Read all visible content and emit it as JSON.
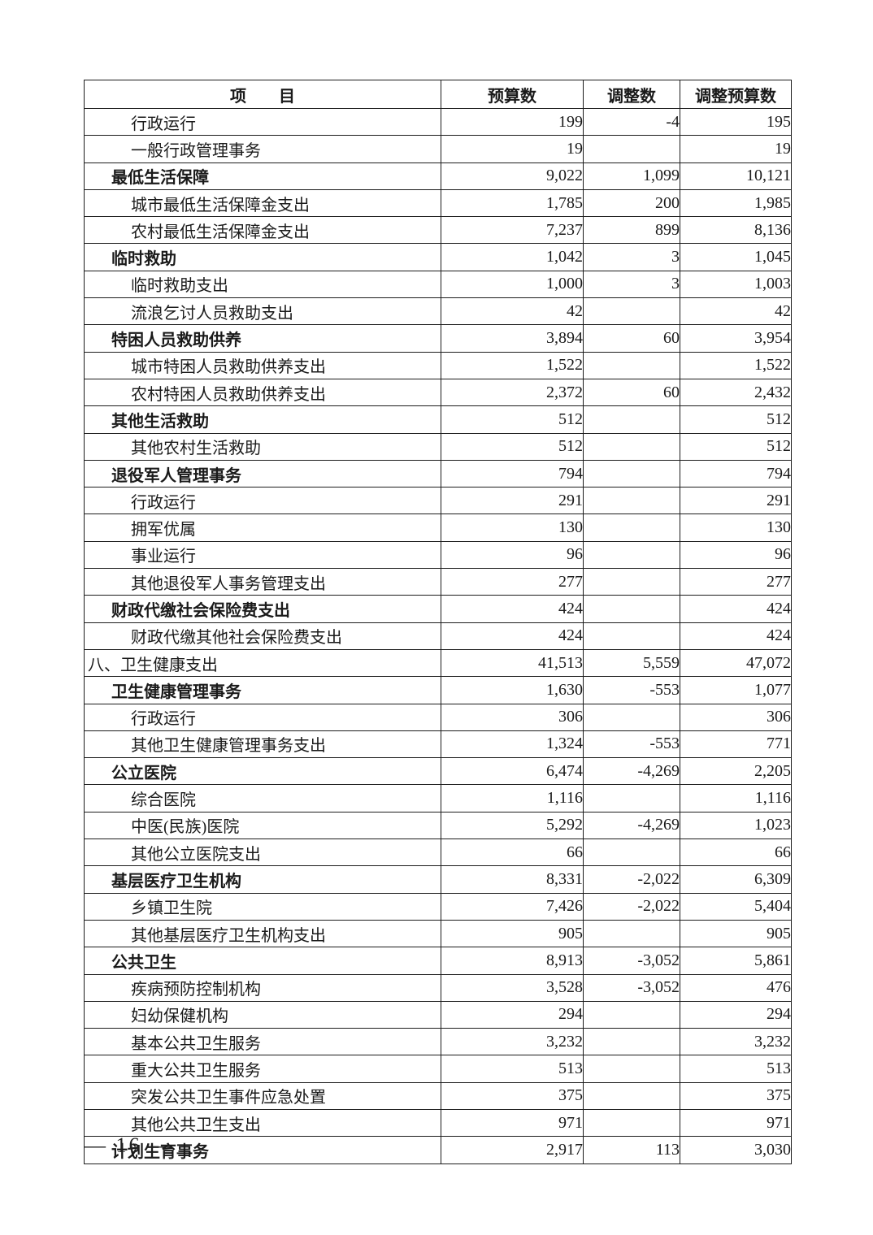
{
  "page": {
    "background_color": "#ffffff",
    "text_color": "#1a1a1a",
    "border_color": "#1c1c1c",
    "page_number_label": "— 16 —"
  },
  "table": {
    "headers": {
      "item": "项　　目",
      "budget": "预算数",
      "adjustment": "调整数",
      "adjusted_budget": "调整预算数"
    },
    "rows": [
      {
        "label": "行政运行",
        "level": 2,
        "bold": false,
        "budget": "199",
        "adjustment": "-4",
        "adjusted": "195"
      },
      {
        "label": "一般行政管理事务",
        "level": 2,
        "bold": false,
        "budget": "19",
        "adjustment": "",
        "adjusted": "19"
      },
      {
        "label": "最低生活保障",
        "level": 1,
        "bold": true,
        "budget": "9,022",
        "adjustment": "1,099",
        "adjusted": "10,121"
      },
      {
        "label": "城市最低生活保障金支出",
        "level": 2,
        "bold": false,
        "budget": "1,785",
        "adjustment": "200",
        "adjusted": "1,985"
      },
      {
        "label": "农村最低生活保障金支出",
        "level": 2,
        "bold": false,
        "budget": "7,237",
        "adjustment": "899",
        "adjusted": "8,136"
      },
      {
        "label": "临时救助",
        "level": 1,
        "bold": true,
        "budget": "1,042",
        "adjustment": "3",
        "adjusted": "1,045"
      },
      {
        "label": "临时救助支出",
        "level": 2,
        "bold": false,
        "budget": "1,000",
        "adjustment": "3",
        "adjusted": "1,003"
      },
      {
        "label": "流浪乞讨人员救助支出",
        "level": 2,
        "bold": false,
        "budget": "42",
        "adjustment": "",
        "adjusted": "42"
      },
      {
        "label": "特困人员救助供养",
        "level": 1,
        "bold": true,
        "budget": "3,894",
        "adjustment": "60",
        "adjusted": "3,954"
      },
      {
        "label": "城市特困人员救助供养支出",
        "level": 2,
        "bold": false,
        "budget": "1,522",
        "adjustment": "",
        "adjusted": "1,522"
      },
      {
        "label": "农村特困人员救助供养支出",
        "level": 2,
        "bold": false,
        "budget": "2,372",
        "adjustment": "60",
        "adjusted": "2,432"
      },
      {
        "label": "其他生活救助",
        "level": 1,
        "bold": true,
        "budget": "512",
        "adjustment": "",
        "adjusted": "512"
      },
      {
        "label": "其他农村生活救助",
        "level": 2,
        "bold": false,
        "budget": "512",
        "adjustment": "",
        "adjusted": "512"
      },
      {
        "label": "退役军人管理事务",
        "level": 1,
        "bold": true,
        "budget": "794",
        "adjustment": "",
        "adjusted": "794"
      },
      {
        "label": "行政运行",
        "level": 2,
        "bold": false,
        "budget": "291",
        "adjustment": "",
        "adjusted": "291"
      },
      {
        "label": "拥军优属",
        "level": 2,
        "bold": false,
        "budget": "130",
        "adjustment": "",
        "adjusted": "130"
      },
      {
        "label": "事业运行",
        "level": 2,
        "bold": false,
        "budget": "96",
        "adjustment": "",
        "adjusted": "96"
      },
      {
        "label": "其他退役军人事务管理支出",
        "level": 2,
        "bold": false,
        "budget": "277",
        "adjustment": "",
        "adjusted": "277"
      },
      {
        "label": "财政代缴社会保险费支出",
        "level": 1,
        "bold": true,
        "budget": "424",
        "adjustment": "",
        "adjusted": "424"
      },
      {
        "label": "财政代缴其他社会保险费支出",
        "level": 2,
        "bold": false,
        "budget": "424",
        "adjustment": "",
        "adjusted": "424"
      },
      {
        "label": "八、卫生健康支出",
        "level": 0,
        "bold": false,
        "budget": "41,513",
        "adjustment": "5,559",
        "adjusted": "47,072"
      },
      {
        "label": "卫生健康管理事务",
        "level": 1,
        "bold": true,
        "budget": "1,630",
        "adjustment": "-553",
        "adjusted": "1,077"
      },
      {
        "label": "行政运行",
        "level": 2,
        "bold": false,
        "budget": "306",
        "adjustment": "",
        "adjusted": "306"
      },
      {
        "label": "其他卫生健康管理事务支出",
        "level": 2,
        "bold": false,
        "budget": "1,324",
        "adjustment": "-553",
        "adjusted": "771"
      },
      {
        "label": "公立医院",
        "level": 1,
        "bold": true,
        "budget": "6,474",
        "adjustment": "-4,269",
        "adjusted": "2,205"
      },
      {
        "label": "综合医院",
        "level": 2,
        "bold": false,
        "budget": "1,116",
        "adjustment": "",
        "adjusted": "1,116"
      },
      {
        "label": "中医(民族)医院",
        "level": 2,
        "bold": false,
        "budget": "5,292",
        "adjustment": "-4,269",
        "adjusted": "1,023"
      },
      {
        "label": "其他公立医院支出",
        "level": 2,
        "bold": false,
        "budget": "66",
        "adjustment": "",
        "adjusted": "66"
      },
      {
        "label": "基层医疗卫生机构",
        "level": 1,
        "bold": true,
        "budget": "8,331",
        "adjustment": "-2,022",
        "adjusted": "6,309"
      },
      {
        "label": "乡镇卫生院",
        "level": 2,
        "bold": false,
        "budget": "7,426",
        "adjustment": "-2,022",
        "adjusted": "5,404"
      },
      {
        "label": "其他基层医疗卫生机构支出",
        "level": 2,
        "bold": false,
        "budget": "905",
        "adjustment": "",
        "adjusted": "905"
      },
      {
        "label": "公共卫生",
        "level": 1,
        "bold": true,
        "budget": "8,913",
        "adjustment": "-3,052",
        "adjusted": "5,861"
      },
      {
        "label": "疾病预防控制机构",
        "level": 2,
        "bold": false,
        "budget": "3,528",
        "adjustment": "-3,052",
        "adjusted": "476"
      },
      {
        "label": "妇幼保健机构",
        "level": 2,
        "bold": false,
        "budget": "294",
        "adjustment": "",
        "adjusted": "294"
      },
      {
        "label": "基本公共卫生服务",
        "level": 2,
        "bold": false,
        "budget": "3,232",
        "adjustment": "",
        "adjusted": "3,232"
      },
      {
        "label": "重大公共卫生服务",
        "level": 2,
        "bold": false,
        "budget": "513",
        "adjustment": "",
        "adjusted": "513"
      },
      {
        "label": "突发公共卫生事件应急处置",
        "level": 2,
        "bold": false,
        "budget": "375",
        "adjustment": "",
        "adjusted": "375"
      },
      {
        "label": "其他公共卫生支出",
        "level": 2,
        "bold": false,
        "budget": "971",
        "adjustment": "",
        "adjusted": "971"
      },
      {
        "label": "计划生育事务",
        "level": 1,
        "bold": true,
        "budget": "2,917",
        "adjustment": "113",
        "adjusted": "3,030"
      }
    ]
  }
}
